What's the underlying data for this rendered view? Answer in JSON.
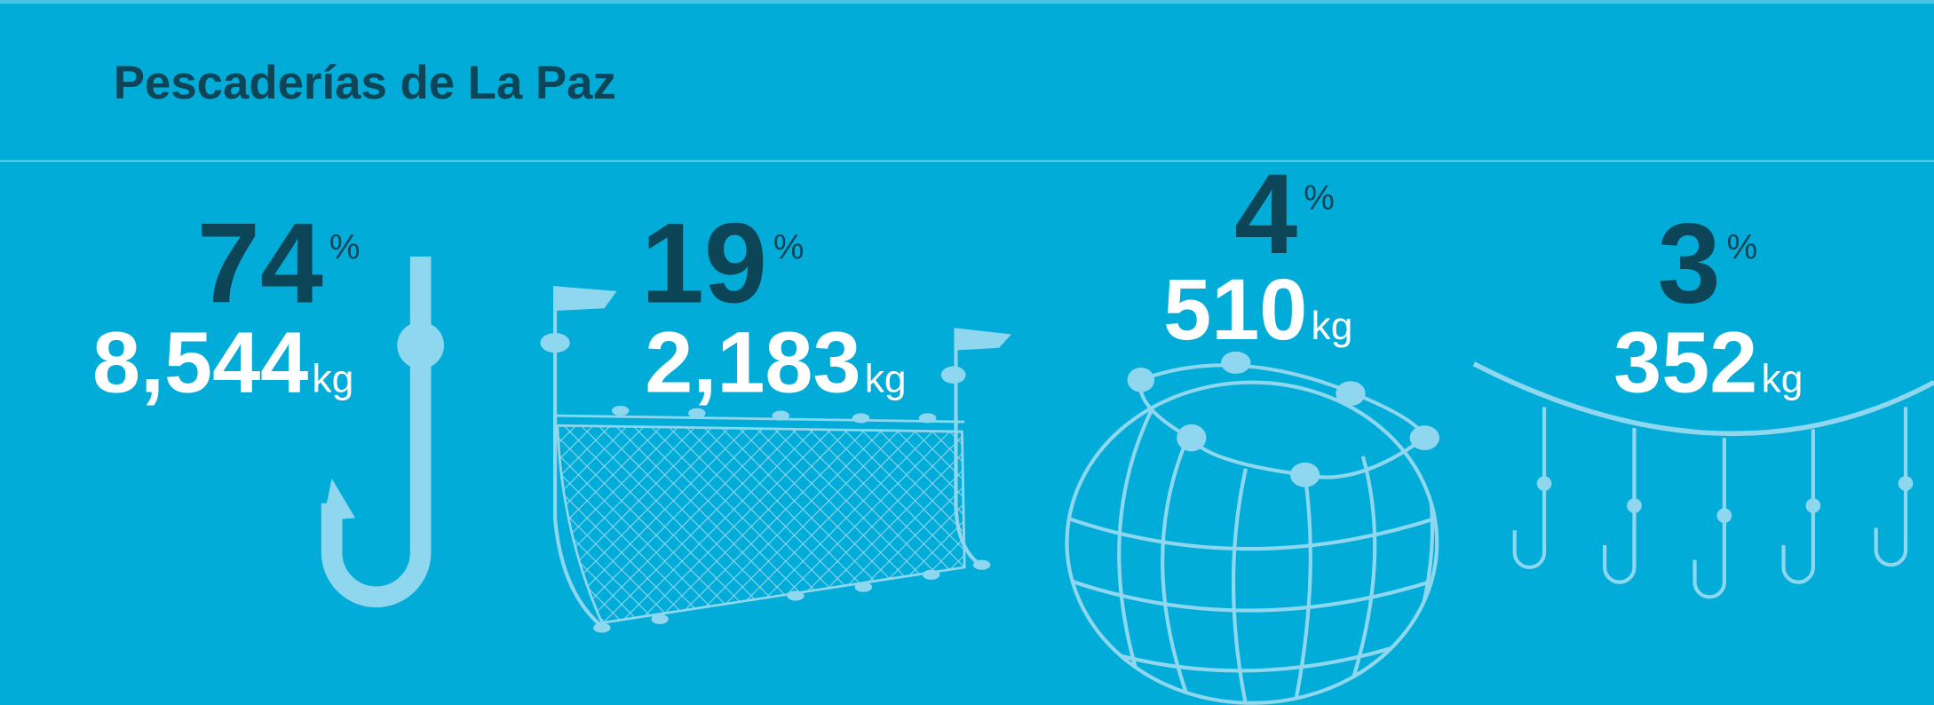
{
  "header": {
    "title": "Pescaderías de La Paz"
  },
  "items": [
    {
      "percent": "74",
      "percent_unit": "%",
      "weight": "8,544",
      "weight_unit": "kg"
    },
    {
      "percent": "19",
      "percent_unit": "%",
      "weight": "2,183",
      "weight_unit": "kg"
    },
    {
      "percent": "4",
      "percent_unit": "%",
      "weight": "510",
      "weight_unit": "kg"
    },
    {
      "percent": "3",
      "percent_unit": "%",
      "weight": "352",
      "weight_unit": "kg"
    }
  ]
}
